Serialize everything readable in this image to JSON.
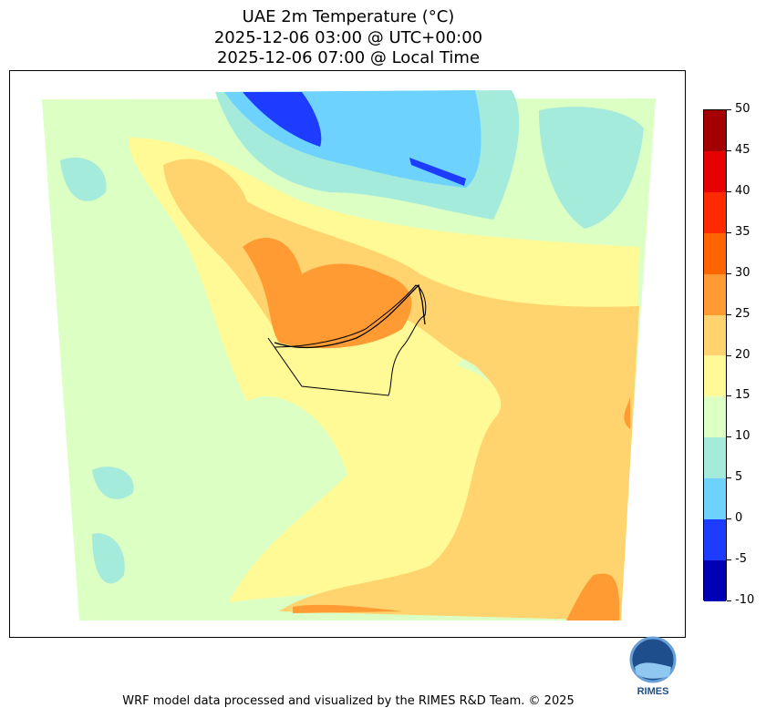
{
  "title": {
    "line1": "UAE 2m Temperature (°C)",
    "line2": "2025-12-06 03:00 @ UTC+00:00",
    "line3": "2025-12-06 07:00 @ Local Time"
  },
  "colorbar": {
    "ticks": [
      "50",
      "45",
      "40",
      "35",
      "30",
      "25",
      "20",
      "15",
      "10",
      "5",
      "0",
      "-5",
      "-10"
    ],
    "colors": [
      "#a50000",
      "#e60000",
      "#ff2a00",
      "#ff6400",
      "#ff9b32",
      "#ffd36e",
      "#fffa96",
      "#dcffc4",
      "#a5ebdc",
      "#6ed2ff",
      "#1e3cff",
      "#0000b4"
    ]
  },
  "logo": {
    "text": "RIMES"
  },
  "footer": "WRF model data processed and visualized by the RIMES R&D Team. © 2025"
}
